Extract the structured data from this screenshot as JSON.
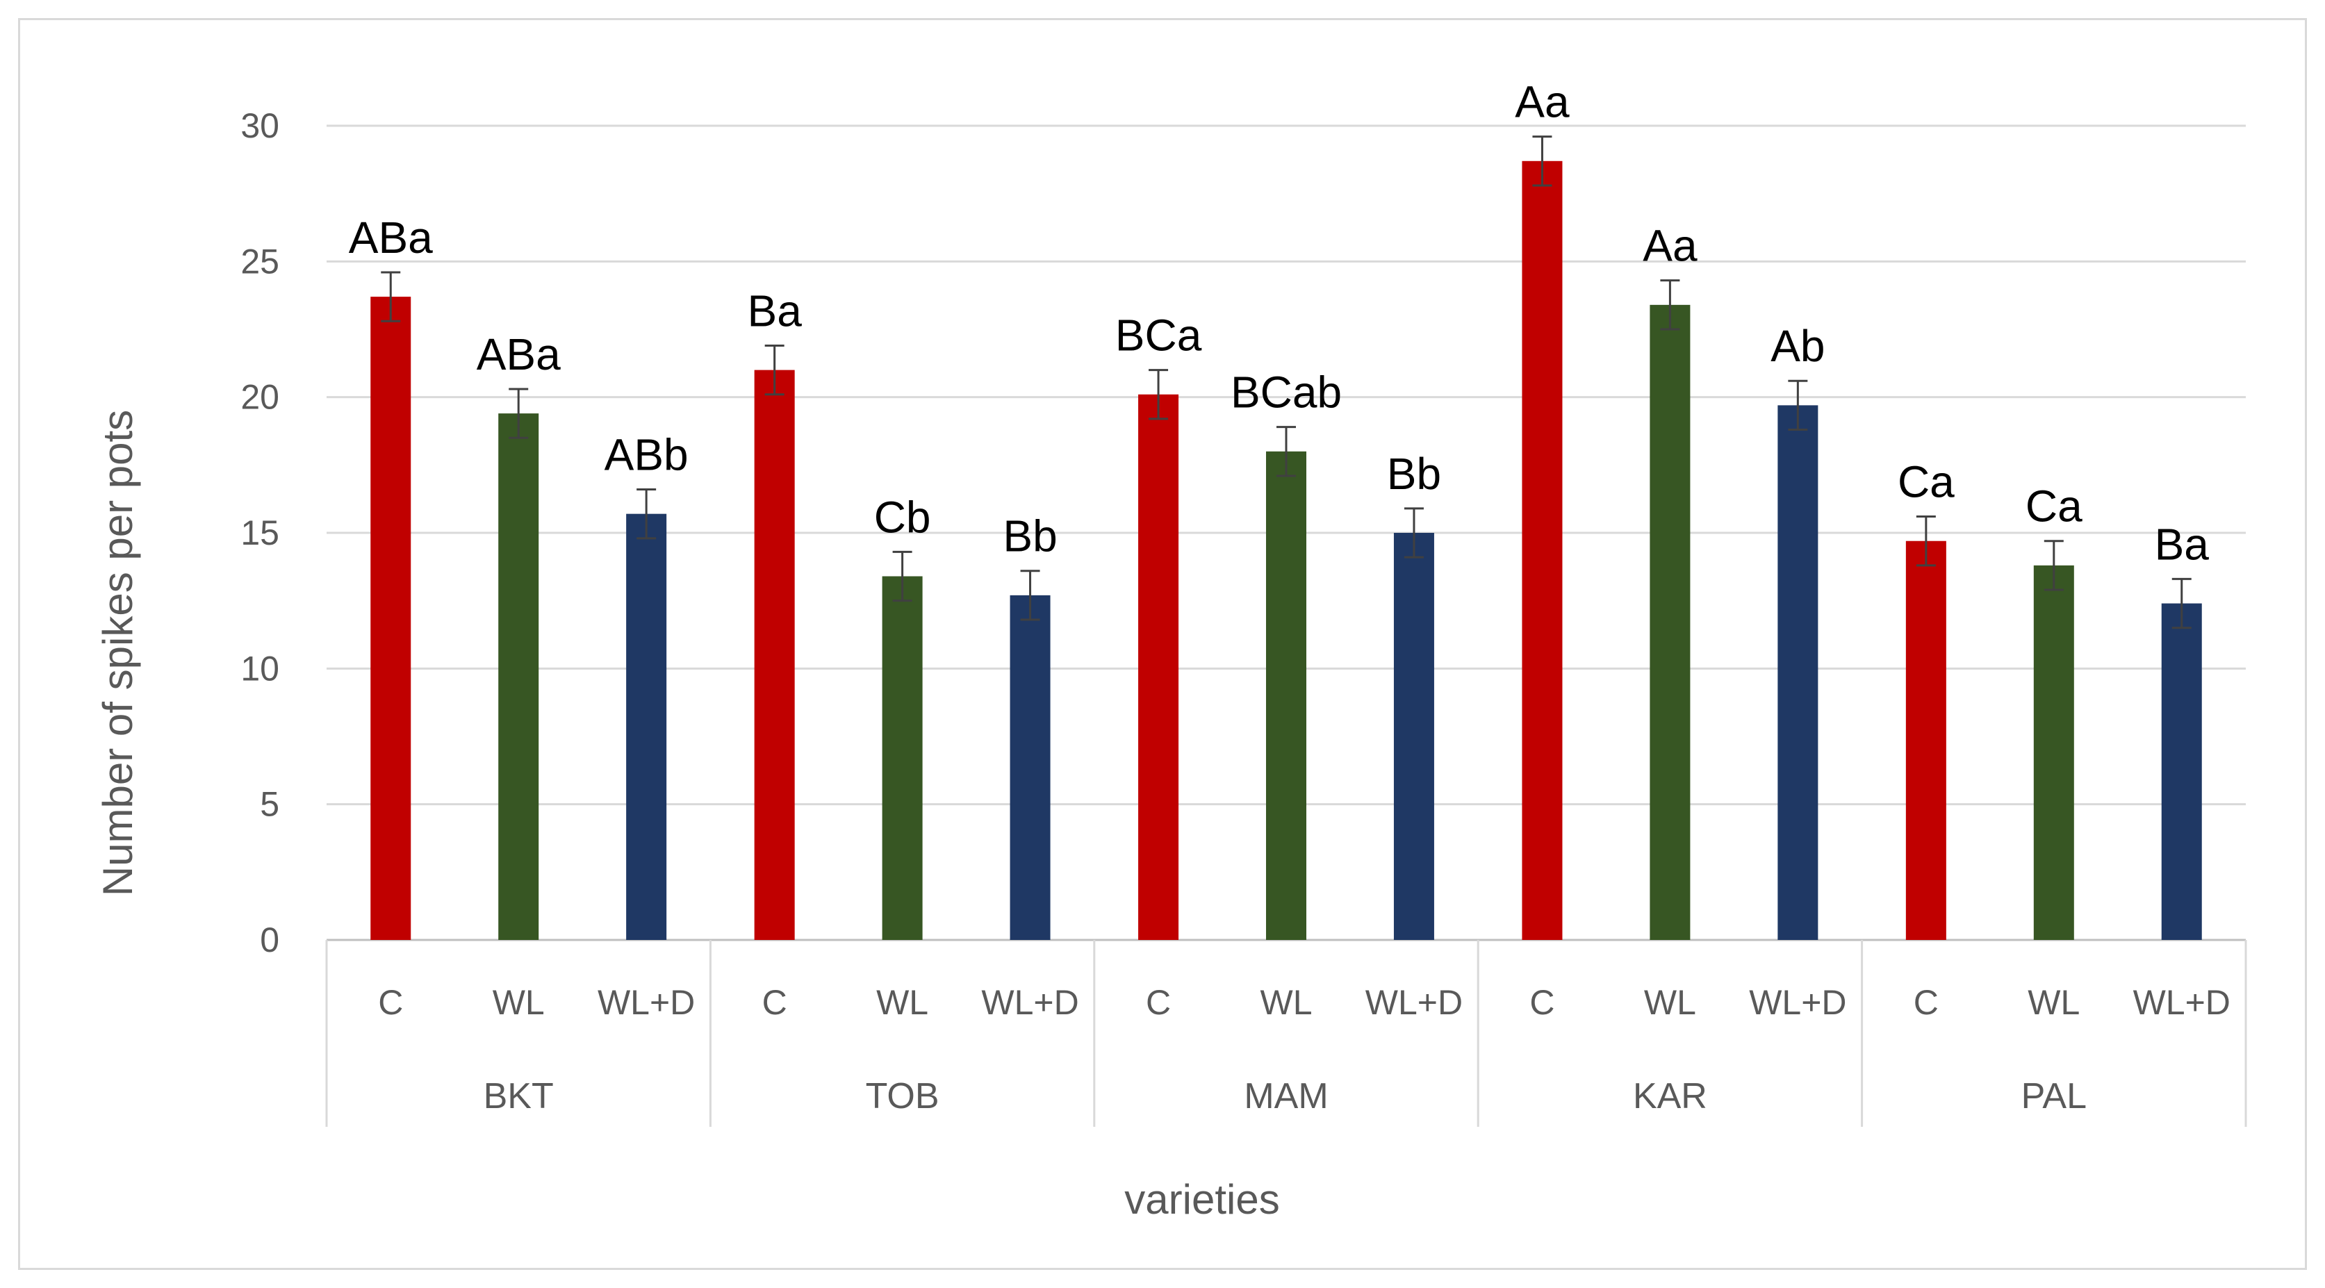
{
  "chart_data": {
    "type": "bar",
    "ylabel": "Number of spikes per pots",
    "xlabel": "varieties",
    "ylim": [
      0,
      30
    ],
    "yticks": [
      0,
      5,
      10,
      15,
      20,
      25,
      30
    ],
    "grid": true,
    "treatments": [
      "C",
      "WL",
      "WL+D"
    ],
    "colors": {
      "C": "#c00000",
      "WL": "#375623",
      "WL+D": "#1f3864"
    },
    "groups": [
      {
        "name": "BKT",
        "bars": [
          {
            "treatment": "C",
            "value": 23.7,
            "error": 0.9,
            "label": "ABa"
          },
          {
            "treatment": "WL",
            "value": 19.4,
            "error": 0.9,
            "label": "ABa"
          },
          {
            "treatment": "WL+D",
            "value": 15.7,
            "error": 0.9,
            "label": "ABb"
          }
        ]
      },
      {
        "name": "TOB",
        "bars": [
          {
            "treatment": "C",
            "value": 21.0,
            "error": 0.9,
            "label": "Ba"
          },
          {
            "treatment": "WL",
            "value": 13.4,
            "error": 0.9,
            "label": "Cb"
          },
          {
            "treatment": "WL+D",
            "value": 12.7,
            "error": 0.9,
            "label": "Bb"
          }
        ]
      },
      {
        "name": "MAM",
        "bars": [
          {
            "treatment": "C",
            "value": 20.1,
            "error": 0.9,
            "label": "BCa"
          },
          {
            "treatment": "WL",
            "value": 18.0,
            "error": 0.9,
            "label": "BCab"
          },
          {
            "treatment": "WL+D",
            "value": 15.0,
            "error": 0.9,
            "label": "Bb"
          }
        ]
      },
      {
        "name": "KAR",
        "bars": [
          {
            "treatment": "C",
            "value": 28.7,
            "error": 0.9,
            "label": "Aa"
          },
          {
            "treatment": "WL",
            "value": 23.4,
            "error": 0.9,
            "label": "Aa"
          },
          {
            "treatment": "WL+D",
            "value": 19.7,
            "error": 0.9,
            "label": "Ab"
          }
        ]
      },
      {
        "name": "PAL",
        "bars": [
          {
            "treatment": "C",
            "value": 14.7,
            "error": 0.9,
            "label": "Ca"
          },
          {
            "treatment": "WL",
            "value": 13.8,
            "error": 0.9,
            "label": "Ca"
          },
          {
            "treatment": "WL+D",
            "value": 12.4,
            "error": 0.9,
            "label": "Ba"
          }
        ]
      }
    ]
  }
}
